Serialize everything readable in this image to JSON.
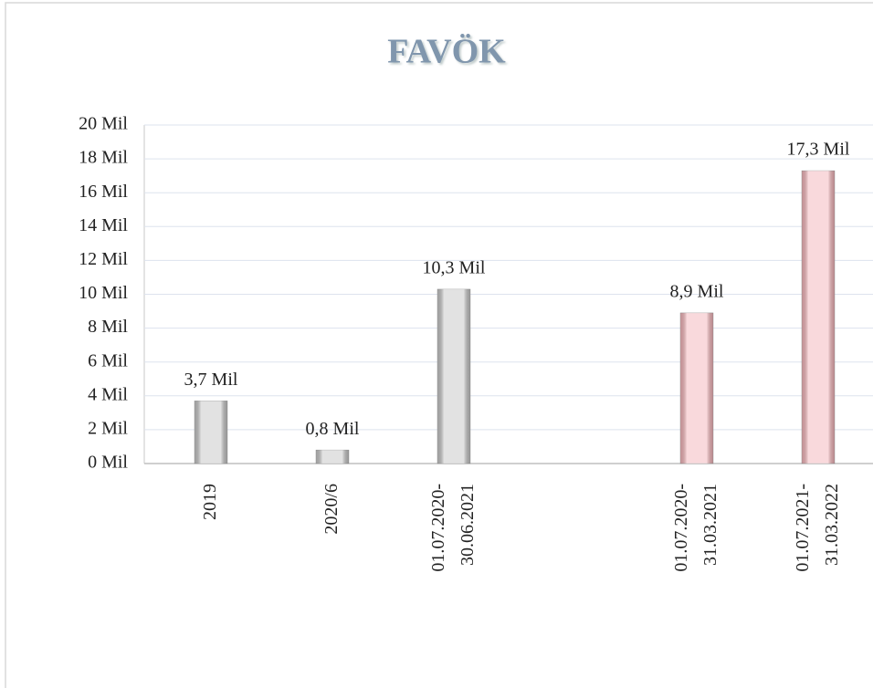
{
  "chart_data": {
    "type": "bar",
    "title": "FAVÖK",
    "categories": [
      "2019",
      "2020/6",
      "01.07.2020-\n30.06.2021",
      null,
      "01.07.2020-\n31.03.2021",
      "01.07.2021-\n31.03.2022"
    ],
    "values": [
      3.7,
      0.8,
      10.3,
      null,
      8.9,
      17.3
    ],
    "value_labels": [
      "3,7 Mil",
      "0,8 Mil",
      "10,3 Mil",
      null,
      "8,9 Mil",
      "17,3 Mil"
    ],
    "colors": [
      "#c4c4c4",
      "#c4c4c4",
      "#c4c4c4",
      null,
      "#f3b3b8",
      "#f3b3b8"
    ],
    "ylim": [
      0,
      20
    ],
    "yticks": [
      {
        "value": 0,
        "label": "0 Mil"
      },
      {
        "value": 2,
        "label": "2 Mil"
      },
      {
        "value": 4,
        "label": "4 Mil"
      },
      {
        "value": 6,
        "label": "6 Mil"
      },
      {
        "value": 8,
        "label": "8 Mil"
      },
      {
        "value": 10,
        "label": "10 Mil"
      },
      {
        "value": 12,
        "label": "12 Mil"
      },
      {
        "value": 14,
        "label": "14 Mil"
      },
      {
        "value": 16,
        "label": "16 Mil"
      },
      {
        "value": 18,
        "label": "18 Mil"
      },
      {
        "value": 20,
        "label": "20 Mil"
      }
    ],
    "grid": true
  }
}
